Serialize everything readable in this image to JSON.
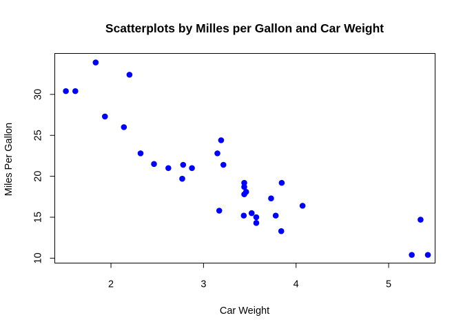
{
  "chart_data": {
    "type": "scatter",
    "title": "Scatterplots by Milles per Gallon and  Car Weight",
    "xlabel": "Car Weight",
    "ylabel": "Miles Per Gallon",
    "xlim": [
      1.393,
      5.502
    ],
    "ylim": [
      9.4,
      35.0
    ],
    "xticks": [
      2,
      3,
      4,
      5
    ],
    "yticks": [
      10,
      15,
      20,
      25,
      30
    ],
    "grid": false,
    "point_color": "#0000ff",
    "x": [
      2.62,
      2.875,
      2.32,
      3.215,
      3.44,
      3.46,
      3.57,
      3.19,
      3.15,
      3.44,
      3.44,
      4.07,
      3.73,
      3.78,
      5.25,
      5.424,
      5.345,
      2.2,
      1.615,
      1.835,
      2.465,
      3.52,
      3.435,
      3.84,
      3.845,
      1.935,
      2.14,
      1.513,
      3.17,
      2.77,
      3.57,
      2.78
    ],
    "y": [
      21.0,
      21.0,
      22.8,
      21.4,
      18.7,
      18.1,
      14.3,
      24.4,
      22.8,
      19.2,
      17.8,
      16.4,
      17.3,
      15.2,
      10.4,
      10.4,
      14.7,
      32.4,
      30.4,
      33.9,
      21.5,
      15.5,
      15.2,
      13.3,
      19.2,
      27.3,
      26.0,
      30.4,
      15.8,
      19.7,
      15.0,
      21.4
    ]
  }
}
